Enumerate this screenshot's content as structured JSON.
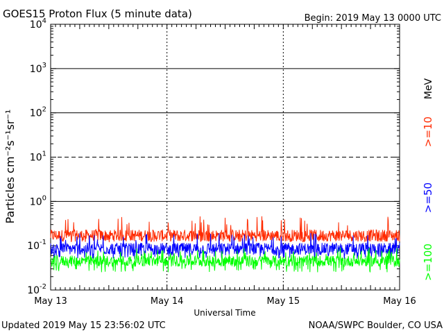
{
  "header": {
    "title": "GOES15 Proton Flux (5 minute data)",
    "begin": "Begin: 2019 May 13 0000 UTC"
  },
  "footer": {
    "updated": "Updated 2019 May 15 23:56:02 UTC",
    "credit": "NOAA/SWPC Boulder, CO USA"
  },
  "colors": {
    "ge10": "#ff2a00",
    "ge50": "#0000ff",
    "ge100": "#00ff00"
  },
  "chart_data": {
    "type": "line",
    "ylabel": "Particles cm⁻²s⁻¹sr⁻¹",
    "xlabel": "Universal Time",
    "yscale": "log",
    "ylim": [
      0.01,
      10000
    ],
    "y_ticks": [
      {
        "value": 0.01,
        "base": "10",
        "exp": "-2"
      },
      {
        "value": 0.1,
        "base": "10",
        "exp": "-1"
      },
      {
        "value": 1,
        "base": "10",
        "exp": "0"
      },
      {
        "value": 10,
        "base": "10",
        "exp": "1"
      },
      {
        "value": 100,
        "base": "10",
        "exp": "2"
      },
      {
        "value": 1000,
        "base": "10",
        "exp": "3"
      },
      {
        "value": 10000,
        "base": "10",
        "exp": "4"
      }
    ],
    "x_ticks": [
      "May 13",
      "May 14",
      "May 15",
      "May 16"
    ],
    "xlim": [
      "2019-05-13",
      "2019-05-16"
    ],
    "threshold_lines": [
      {
        "value": 10,
        "style": "dashed"
      },
      {
        "value": 100,
        "style": "solid"
      },
      {
        "value": 1000,
        "style": "solid"
      },
      {
        "value": 1,
        "style": "solid"
      }
    ],
    "unit_label": "MeV",
    "series": [
      {
        "name": ">=10",
        "approx_median": 0.17,
        "approx_range": [
          0.12,
          0.48
        ],
        "color": "#ff2a00"
      },
      {
        "name": ">=50",
        "approx_median": 0.085,
        "approx_range": [
          0.05,
          0.2
        ],
        "color": "#0000ff"
      },
      {
        "name": ">=100",
        "approx_median": 0.045,
        "approx_range": [
          0.025,
          0.09
        ],
        "color": "#00ff00"
      }
    ]
  }
}
